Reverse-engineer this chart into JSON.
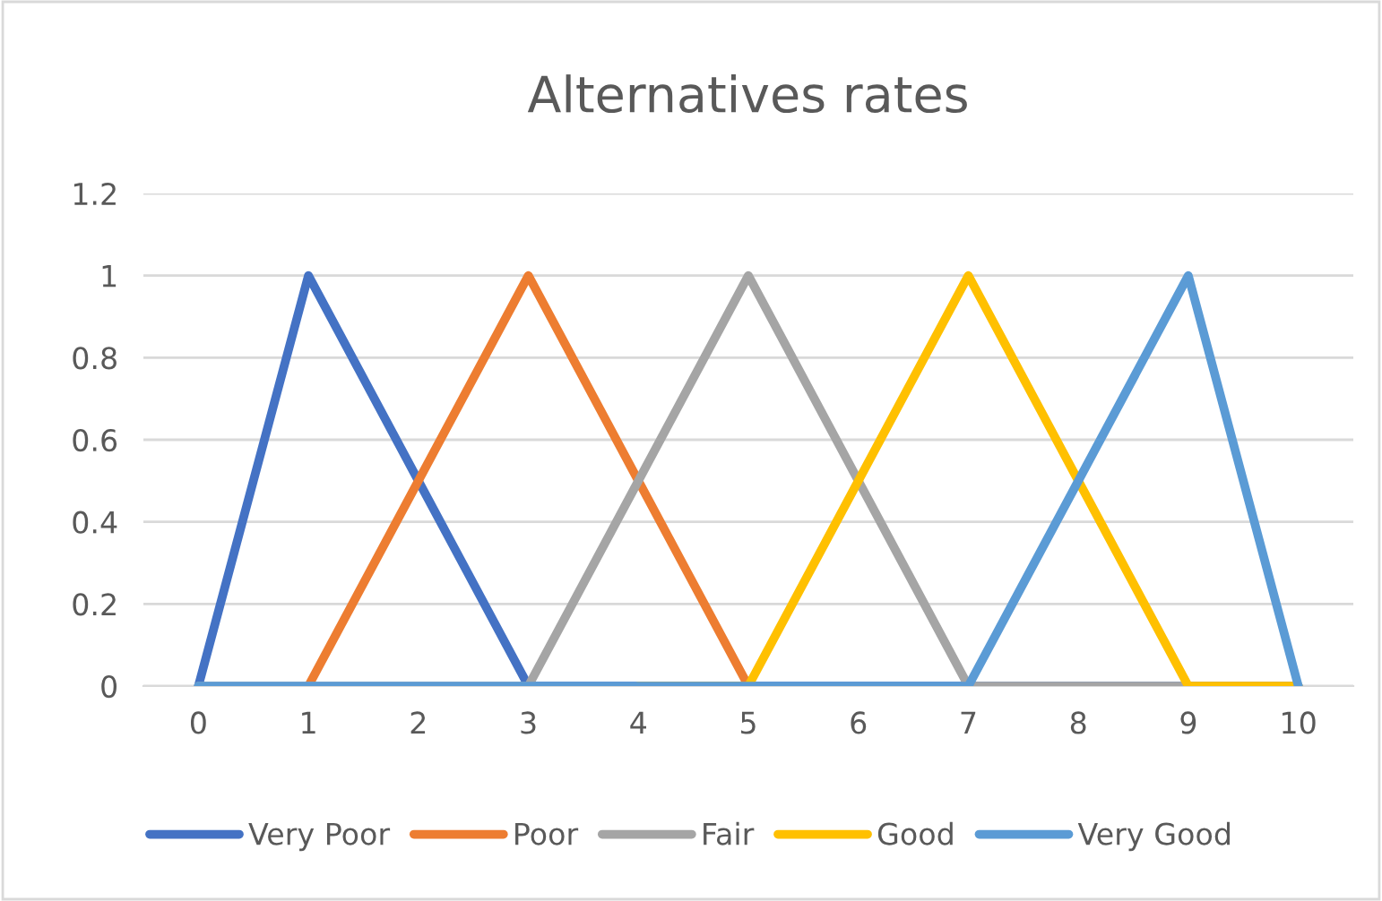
{
  "chart_data": {
    "type": "line",
    "title": "Alternatives rates",
    "categories": [
      "0",
      "1",
      "2",
      "3",
      "4",
      "5",
      "6",
      "7",
      "8",
      "9",
      "10"
    ],
    "series": [
      {
        "name": "Very Poor",
        "color": "#4472c4",
        "values": [
          0,
          1,
          0.5,
          0,
          0,
          0,
          0,
          0,
          0,
          0,
          0
        ]
      },
      {
        "name": "Poor",
        "color": "#ed7d31",
        "values": [
          null,
          0,
          0.5,
          1,
          0.5,
          0,
          null,
          null,
          null,
          null,
          null
        ]
      },
      {
        "name": "Fair",
        "color": "#a5a5a5",
        "values": [
          0,
          0,
          0,
          0,
          0.5,
          1,
          0.5,
          0,
          0,
          0,
          0
        ]
      },
      {
        "name": "Good",
        "color": "#ffc000",
        "values": [
          null,
          null,
          null,
          null,
          0,
          0,
          0.5,
          1,
          0.5,
          0,
          0
        ]
      },
      {
        "name": "Very Good",
        "color": "#5b9bd5",
        "values": [
          0,
          0,
          0,
          0,
          0,
          0,
          0,
          0,
          0.5,
          1,
          0
        ]
      }
    ],
    "ylim": [
      0,
      1.2
    ],
    "yticks": [
      0,
      0.2,
      0.4,
      0.6,
      0.8,
      1,
      1.2
    ],
    "grid": "y",
    "legend": "bottom",
    "marker": "none",
    "line_style": "solid"
  }
}
